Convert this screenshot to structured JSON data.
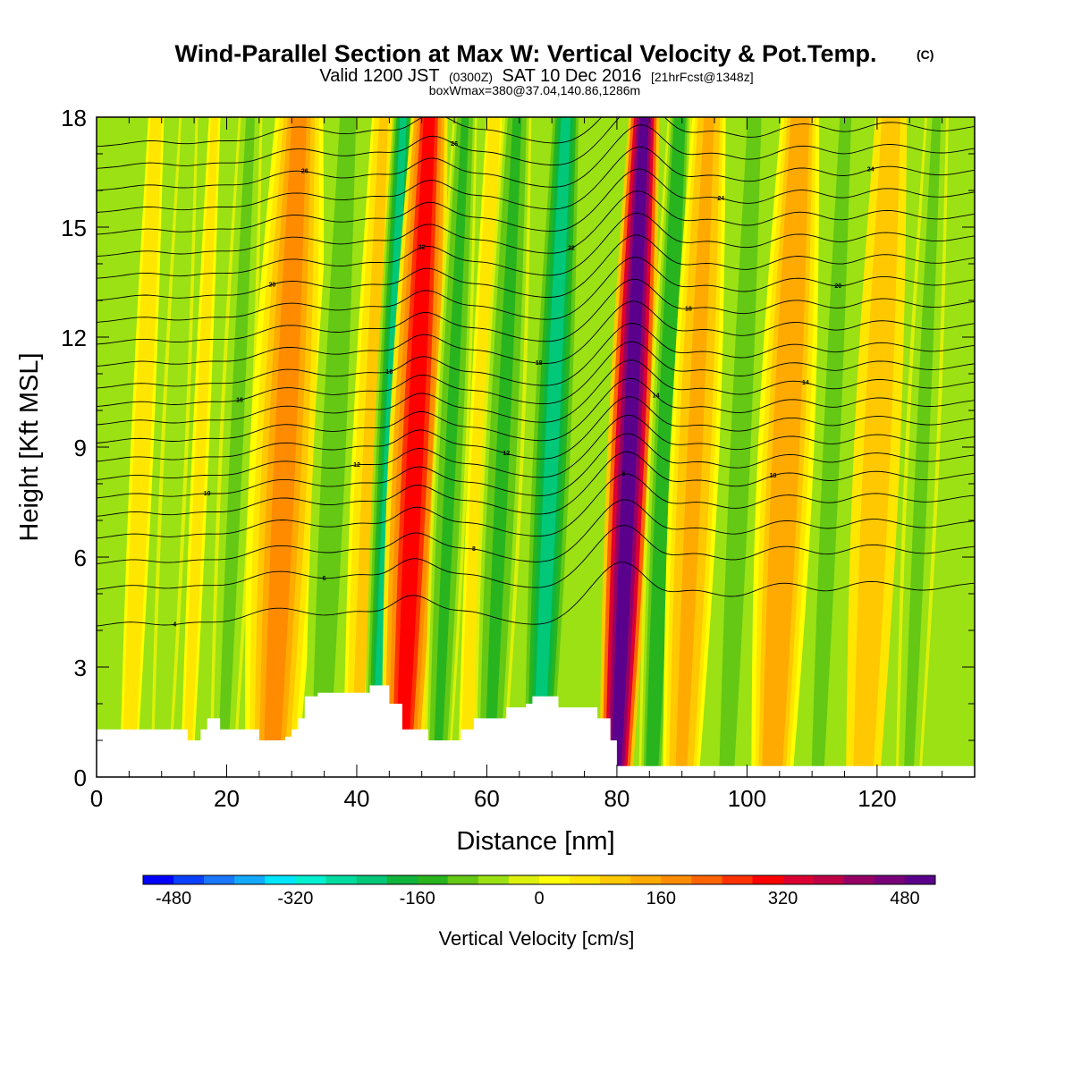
{
  "chart_data": {
    "type": "heatmap",
    "title": "Wind-Parallel Section at Max W: Vertical Velocity & Pot.Temp.",
    "title_mark": "(C)",
    "subtitle": {
      "prefix": "Valid 1200 JST",
      "utc": "(0300Z)",
      "date": "SAT 10 Dec 2016",
      "forecast": "[21hrFcst@1348z]"
    },
    "subtitle2": "boxWmax=380@37.04,140.86,1286m",
    "xlabel": "Distance [nm]",
    "ylabel": "Height [Kft MSL]",
    "xlim": [
      0,
      135
    ],
    "ylim": [
      0,
      18
    ],
    "xticks": [
      0,
      20,
      40,
      60,
      80,
      100,
      120
    ],
    "yticks": [
      0,
      3,
      6,
      9,
      12,
      15,
      18
    ],
    "colorbar": {
      "label": "Vertical Velocity [cm/s]",
      "min": -520,
      "step": 40,
      "tick_values": [
        -480,
        -320,
        -160,
        0,
        160,
        320,
        480
      ],
      "colors": [
        "#0000ff",
        "#0a40ff",
        "#1a78ff",
        "#14aaff",
        "#00e6ff",
        "#00f0d0",
        "#00dca0",
        "#00c878",
        "#0fb43c",
        "#28b41e",
        "#64c814",
        "#9be114",
        "#dcf00a",
        "#ffff00",
        "#ffe600",
        "#ffc800",
        "#ffaa00",
        "#ff8c00",
        "#ff6400",
        "#ff3200",
        "#ff0000",
        "#dc0032",
        "#be0046",
        "#960064",
        "#780078",
        "#5a008c"
      ]
    },
    "vertical_velocity_bands": [
      {
        "center_nm": 7,
        "width_nm": 2.5,
        "w": 60
      },
      {
        "center_nm": 12,
        "width_nm": 3,
        "w": -60
      },
      {
        "center_nm": 16,
        "width_nm": 2.5,
        "w": 40
      },
      {
        "center_nm": 21.5,
        "width_nm": 3,
        "w": -100
      },
      {
        "center_nm": 29,
        "width_nm": 5,
        "w": 170
      },
      {
        "center_nm": 36.5,
        "width_nm": 3.5,
        "w": -120
      },
      {
        "center_nm": 42,
        "width_nm": 3,
        "w": 80
      },
      {
        "center_nm": 45,
        "width_nm": 2.2,
        "w": -220
      },
      {
        "center_nm": 49,
        "width_nm": 3.8,
        "w": 300
      },
      {
        "center_nm": 54.5,
        "width_nm": 2.5,
        "w": -140
      },
      {
        "center_nm": 59,
        "width_nm": 2.5,
        "w": 60
      },
      {
        "center_nm": 62.5,
        "width_nm": 3,
        "w": -140
      },
      {
        "center_nm": 70,
        "width_nm": 3.2,
        "w": -240
      },
      {
        "center_nm": 82,
        "width_nm": 3.2,
        "w": 540
      },
      {
        "center_nm": 87.5,
        "width_nm": 2.5,
        "w": -160
      },
      {
        "center_nm": 92,
        "width_nm": 3.5,
        "w": 140
      },
      {
        "center_nm": 99,
        "width_nm": 3,
        "w": -120
      },
      {
        "center_nm": 106,
        "width_nm": 4,
        "w": 150
      },
      {
        "center_nm": 113,
        "width_nm": 2.5,
        "w": -110
      },
      {
        "center_nm": 120,
        "width_nm": 4,
        "w": 110
      },
      {
        "center_nm": 127,
        "width_nm": 3,
        "w": -100
      }
    ],
    "terrain": {
      "x_nm": [
        0,
        14,
        14,
        16,
        16,
        17,
        17,
        19,
        19,
        25,
        25,
        29,
        29,
        30,
        30,
        31,
        31,
        32,
        32,
        34,
        34,
        42,
        42,
        45,
        45,
        47,
        47,
        51,
        51,
        56,
        56,
        58,
        58,
        63,
        63,
        66,
        66,
        67,
        67,
        71,
        71,
        77,
        77,
        79,
        79,
        80,
        80,
        135
      ],
      "height_kft": [
        1.3,
        1.3,
        1.0,
        1.0,
        1.3,
        1.3,
        1.6,
        1.6,
        1.3,
        1.3,
        1.0,
        1.0,
        1.1,
        1.1,
        1.3,
        1.3,
        1.6,
        1.6,
        2.2,
        2.2,
        2.3,
        2.3,
        2.5,
        2.5,
        2.0,
        2.0,
        1.3,
        1.3,
        1.0,
        1.0,
        1.3,
        1.3,
        1.6,
        1.6,
        1.9,
        1.9,
        2.0,
        2.0,
        2.2,
        2.2,
        1.9,
        1.9,
        1.6,
        1.6,
        1.0,
        1.0,
        0.3,
        0.3
      ]
    },
    "theta_contours": [
      {
        "label": "4",
        "height_kft": 4.7
      },
      {
        "label": "6",
        "height_kft": 5.7
      },
      {
        "label": "8",
        "height_kft": 6.4
      },
      {
        "label": "8",
        "height_kft": 7.1
      },
      {
        "label": "10",
        "height_kft": 7.7
      },
      {
        "label": "10",
        "height_kft": 8.2
      },
      {
        "label": "12",
        "height_kft": 8.7
      },
      {
        "label": "12",
        "height_kft": 9.2
      },
      {
        "label": "14",
        "height_kft": 9.7
      },
      {
        "label": "14",
        "height_kft": 10.2
      },
      {
        "label": "16",
        "height_kft": 10.7
      },
      {
        "label": "16",
        "height_kft": 11.2
      },
      {
        "label": "18",
        "height_kft": 11.8
      },
      {
        "label": "18",
        "height_kft": 12.4
      },
      {
        "label": "20",
        "height_kft": 13.0
      },
      {
        "label": "20",
        "height_kft": 13.6
      },
      {
        "label": "22",
        "height_kft": 14.2
      },
      {
        "label": "22",
        "height_kft": 14.8
      },
      {
        "label": "24",
        "height_kft": 15.4
      },
      {
        "label": "24",
        "height_kft": 16.0
      },
      {
        "label": "26",
        "height_kft": 16.6
      },
      {
        "label": "26",
        "height_kft": 17.2
      },
      {
        "label": "28",
        "height_kft": 17.8
      }
    ],
    "grid": false,
    "legend": "colorbar-bottom"
  }
}
